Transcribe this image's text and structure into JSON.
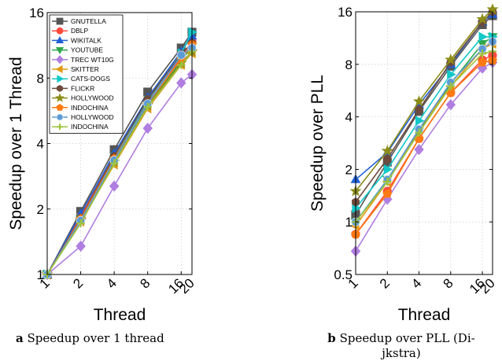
{
  "captions": {
    "a": {
      "letter": "a",
      "text": "Speedup over 1 thread"
    },
    "b": {
      "letter": "b",
      "text_line1": "Speedup over PLL (Di-",
      "text_line2": "jkstra)"
    }
  },
  "chart_data": [
    {
      "type": "line",
      "title": "",
      "xlabel": "Thread",
      "ylabel": "Speedup over 1 Thread",
      "x": [
        1,
        2,
        4,
        8,
        16,
        20
      ],
      "x_tick_labels": [
        "1",
        "2",
        "4",
        "8",
        "16",
        "20"
      ],
      "yscale": "log2",
      "xscale": "log2",
      "ylim": [
        1,
        16
      ],
      "y_ticks": [
        1,
        2,
        4,
        8,
        16
      ],
      "y_tick_labels": [
        "1",
        "2",
        "4",
        "8",
        "16"
      ],
      "grid": true,
      "legend": "top-left",
      "series": [
        {
          "name": "GNUTELLA",
          "color": "#555555",
          "marker": "square",
          "values": [
            1,
            1.95,
            3.75,
            6.9,
            11.0,
            13.0
          ]
        },
        {
          "name": "DBLP",
          "color": "#ff4a3d",
          "marker": "circle",
          "values": [
            1,
            1.85,
            3.5,
            6.2,
            10.0,
            11.8
          ]
        },
        {
          "name": "WIKITALK",
          "color": "#1f5fd6",
          "marker": "triangle-up",
          "values": [
            1,
            1.9,
            3.6,
            6.5,
            10.6,
            12.5
          ]
        },
        {
          "name": "YOUTUBE",
          "color": "#2ea84a",
          "marker": "triangle-down",
          "values": [
            1,
            1.8,
            3.4,
            6.0,
            9.6,
            11.2
          ]
        },
        {
          "name": "TREC WT10G",
          "color": "#b07ee0",
          "marker": "diamond",
          "values": [
            1,
            1.35,
            2.55,
            4.7,
            7.6,
            8.3
          ]
        },
        {
          "name": "SKITTER",
          "color": "#e09a12",
          "marker": "triangle-left",
          "values": [
            1,
            1.75,
            3.2,
            5.8,
            9.2,
            10.4
          ]
        },
        {
          "name": "CATS-DOGS",
          "color": "#12c8c8",
          "marker": "triangle-right",
          "values": [
            1,
            1.8,
            3.45,
            6.3,
            10.4,
            13.0
          ]
        },
        {
          "name": "FLICKR",
          "color": "#6e4a3c",
          "marker": "hexagon",
          "values": [
            1,
            1.82,
            3.5,
            6.4,
            10.3,
            11.6
          ]
        },
        {
          "name": "HOLLYWOOD",
          "color": "#8c8c18",
          "marker": "star",
          "values": [
            1,
            1.78,
            3.3,
            6.0,
            9.4,
            10.6
          ]
        },
        {
          "name": "INDOCHINA",
          "color": "#ff7a12",
          "marker": "pentagon",
          "values": [
            1,
            1.8,
            3.4,
            6.1,
            9.8,
            11.4
          ]
        },
        {
          "name": "HOLLYWOOD",
          "color": "#5c9ad6",
          "marker": "circle-shaded",
          "values": [
            1,
            1.77,
            3.35,
            6.1,
            10.2,
            11.0
          ]
        },
        {
          "name": "INDOCHINA",
          "color": "#9ec23c",
          "marker": "plus",
          "values": [
            1,
            1.72,
            3.25,
            5.9,
            9.2,
            10.6
          ]
        }
      ]
    },
    {
      "type": "line",
      "title": "",
      "xlabel": "Thread",
      "ylabel": "Speedup over PLL",
      "x": [
        1,
        2,
        4,
        8,
        16,
        20
      ],
      "x_tick_labels": [
        "1",
        "2",
        "4",
        "8",
        "16",
        "20"
      ],
      "yscale": "log2",
      "xscale": "log2",
      "ylim": [
        0.5,
        16
      ],
      "y_ticks": [
        0.5,
        1,
        2,
        4,
        8,
        16
      ],
      "y_tick_labels": [
        "0.5",
        "1",
        "2",
        "4",
        "8",
        "16"
      ],
      "grid": true,
      "legend": "none",
      "series": [
        {
          "name": "GNUTELLA",
          "color": "#555555",
          "marker": "square",
          "values": [
            1.1,
            2.2,
            4.3,
            7.8,
            13.5,
            15.2
          ]
        },
        {
          "name": "DBLP",
          "color": "#ff4a3d",
          "marker": "circle",
          "values": [
            0.85,
            1.5,
            3.0,
            5.5,
            8.5,
            9.0
          ]
        },
        {
          "name": "WIKITALK",
          "color": "#1f5fd6",
          "marker": "triangle-up",
          "values": [
            1.75,
            2.5,
            4.7,
            8.0,
            14.0,
            15.5
          ]
        },
        {
          "name": "YOUTUBE",
          "color": "#2ea84a",
          "marker": "triangle-down",
          "values": [
            1.0,
            1.75,
            3.3,
            6.2,
            10.5,
            11.5
          ]
        },
        {
          "name": "TREC WT10G",
          "color": "#b07ee0",
          "marker": "diamond",
          "values": [
            0.68,
            1.35,
            2.6,
            4.7,
            7.6,
            8.2
          ]
        },
        {
          "name": "SKITTER",
          "color": "#e09a12",
          "marker": "triangle-left",
          "values": [
            0.95,
            1.7,
            3.4,
            6.0,
            9.8,
            10.5
          ]
        },
        {
          "name": "CATS-DOGS",
          "color": "#12c8c8",
          "marker": "triangle-right",
          "values": [
            1.2,
            2.0,
            3.8,
            7.0,
            11.5,
            11.5
          ]
        },
        {
          "name": "FLICKR",
          "color": "#6e4a3c",
          "marker": "hexagon",
          "values": [
            1.3,
            2.3,
            4.4,
            8.2,
            14.0,
            16.0
          ]
        },
        {
          "name": "HOLLYWOOD",
          "color": "#8c8c18",
          "marker": "star",
          "values": [
            1.5,
            2.55,
            4.9,
            8.5,
            14.5,
            16.5
          ]
        },
        {
          "name": "INDOCHINA",
          "color": "#ff7a12",
          "marker": "pentagon",
          "values": [
            0.85,
            1.45,
            3.0,
            5.5,
            8.2,
            8.4
          ]
        },
        {
          "name": "HOLLYWOOD",
          "color": "#5c9ad6",
          "marker": "circle-shaded",
          "values": [
            1.0,
            1.75,
            3.4,
            6.3,
            9.8,
            10.8
          ]
        },
        {
          "name": "INDOCHINA",
          "color": "#9ec23c",
          "marker": "plus",
          "values": [
            1.0,
            1.7,
            3.25,
            6.0,
            9.2,
            9.5
          ]
        }
      ]
    }
  ]
}
